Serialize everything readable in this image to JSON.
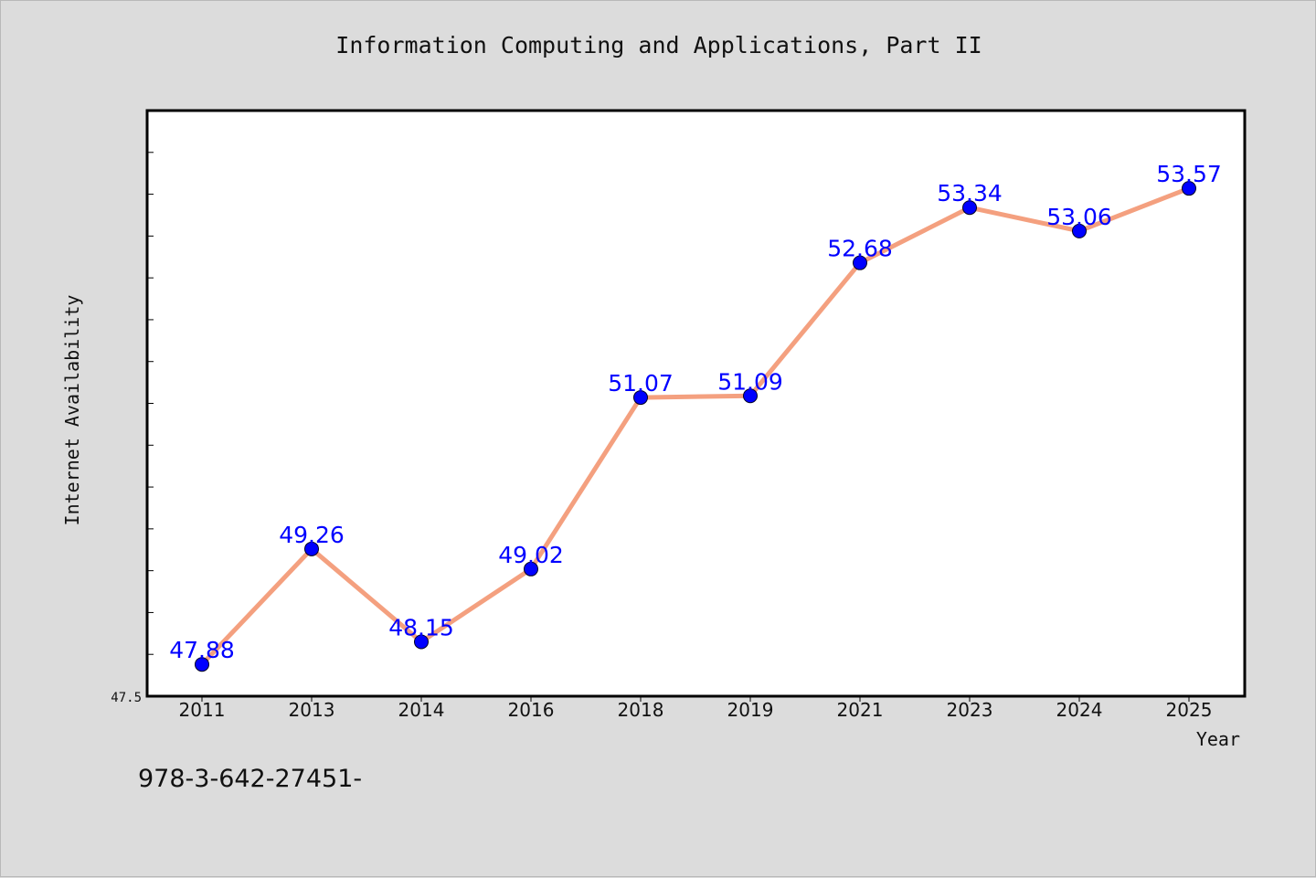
{
  "chart_data": {
    "type": "line",
    "title": "Information Computing and Applications, Part II",
    "xlabel": "Year",
    "ylabel": "Internet Availability",
    "categories": [
      "2011",
      "2013",
      "2014",
      "2016",
      "2018",
      "2019",
      "2021",
      "2023",
      "2024",
      "2025"
    ],
    "series": [
      {
        "values": [
          47.88,
          49.26,
          48.15,
          49.02,
          51.07,
          51.09,
          52.68,
          53.34,
          53.06,
          53.57
        ]
      }
    ],
    "data_labels": [
      "47.88",
      "49.26",
      "48.15",
      "49.02",
      "51.07",
      "51.09",
      "52.68",
      "53.34",
      "53.06",
      "53.57"
    ],
    "ylim": [
      47.5,
      54.5
    ],
    "yticks_labeled": [
      "47.5"
    ],
    "grid": false,
    "colors": {
      "line": "#f4a07f",
      "marker": "#0000ff",
      "label": "#0000ff",
      "plot_bg": "#ffffff",
      "figure_bg": "#dcdcdc"
    }
  },
  "footer_text": "978-3-642-27451-"
}
